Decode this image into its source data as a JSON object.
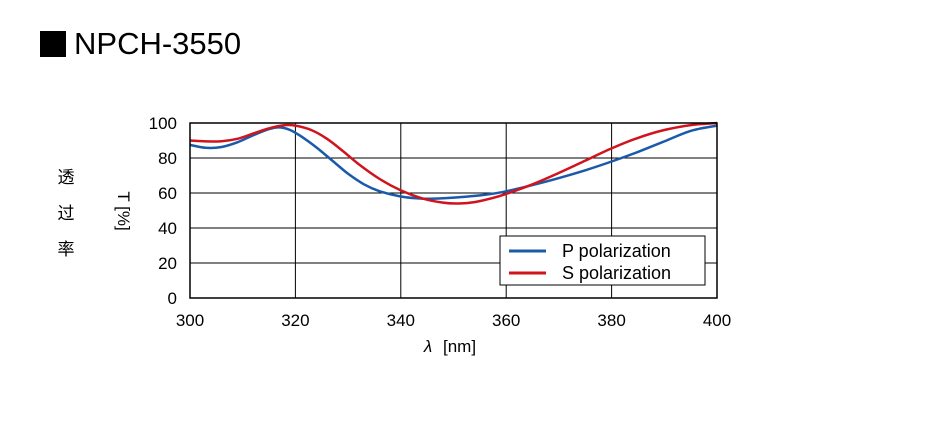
{
  "title": "NPCH-3550",
  "chart_data": {
    "type": "line",
    "title": "NPCH-3550",
    "xlabel_symbol": "λ",
    "xlabel_unit": "[nm]",
    "ylabel_jp": [
      "透",
      "过",
      "率"
    ],
    "ylabel": "T [%]",
    "xlim": [
      300,
      400
    ],
    "ylim": [
      0,
      100
    ],
    "xticks": [
      300,
      320,
      340,
      360,
      380,
      400
    ],
    "yticks": [
      0,
      20,
      40,
      60,
      80,
      100
    ],
    "grid": true,
    "legend_position": "bottom-right",
    "series": [
      {
        "name": "P polarization",
        "color": "#1a5aa8",
        "x": [
          300,
          303,
          306,
          309,
          312,
          315,
          317,
          319,
          321,
          324,
          327,
          330,
          333,
          336,
          340,
          344,
          348,
          352,
          356,
          360,
          365,
          370,
          375,
          380,
          385,
          390,
          395,
          400
        ],
        "y": [
          87.5,
          85.8,
          86.3,
          89.0,
          93.0,
          96.5,
          97.5,
          96.0,
          92.5,
          86.0,
          78.5,
          71.0,
          65.0,
          61.0,
          58.0,
          56.8,
          57.0,
          57.8,
          59.0,
          61.0,
          64.5,
          68.5,
          73.0,
          78.0,
          83.5,
          89.5,
          95.5,
          98.5
        ]
      },
      {
        "name": "S polarization",
        "color": "#d0141e",
        "x": [
          300,
          303,
          306,
          309,
          312,
          315,
          318,
          320,
          323,
          326,
          329,
          332,
          336,
          340,
          344,
          348,
          351,
          354,
          357,
          360,
          365,
          370,
          375,
          380,
          385,
          390,
          395,
          400
        ],
        "y": [
          90.0,
          89.5,
          89.6,
          91.0,
          94.0,
          97.0,
          98.8,
          98.5,
          96.0,
          91.0,
          84.0,
          76.5,
          68.0,
          61.5,
          57.0,
          54.5,
          54.0,
          54.8,
          56.8,
          59.5,
          65.0,
          71.5,
          78.5,
          85.5,
          91.5,
          96.0,
          98.8,
          100.0
        ]
      }
    ]
  }
}
